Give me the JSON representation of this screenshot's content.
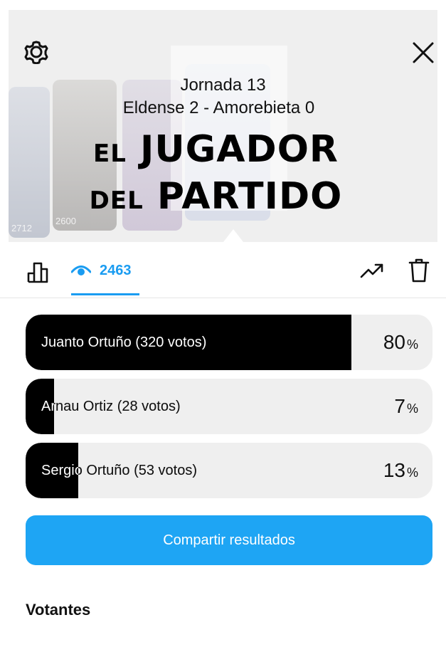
{
  "story": {
    "jornada": "Jornada 13",
    "match": "Eldense 2 - Amorebieta 0",
    "title_line1_small": "EL",
    "title_line1_big": "JUGADOR",
    "title_line2_small": "DEL",
    "title_line2_big": "PARTIDO",
    "card_counts": [
      "2712",
      "2600"
    ]
  },
  "toolbar": {
    "views_count": "2463",
    "accent": "#1a9cf1"
  },
  "poll": {
    "options": [
      {
        "label": "Juanto Ortuño (320 votos)",
        "percent": "80",
        "fill_fraction": 0.8
      },
      {
        "label": "Arnau Ortiz (28 votos)",
        "percent": "7",
        "fill_fraction": 0.07
      },
      {
        "label": "Sergio Ortuño (53 votos)",
        "percent": "13",
        "fill_fraction": 0.13
      }
    ],
    "percent_symbol": "%"
  },
  "actions": {
    "share_label": "Compartir resultados",
    "share_color": "#1ea5f4"
  },
  "voters": {
    "heading": "Votantes"
  },
  "icons": [
    "gear-icon",
    "close-icon",
    "bar-chart-icon",
    "eye-icon",
    "trending-icon",
    "trash-icon"
  ]
}
